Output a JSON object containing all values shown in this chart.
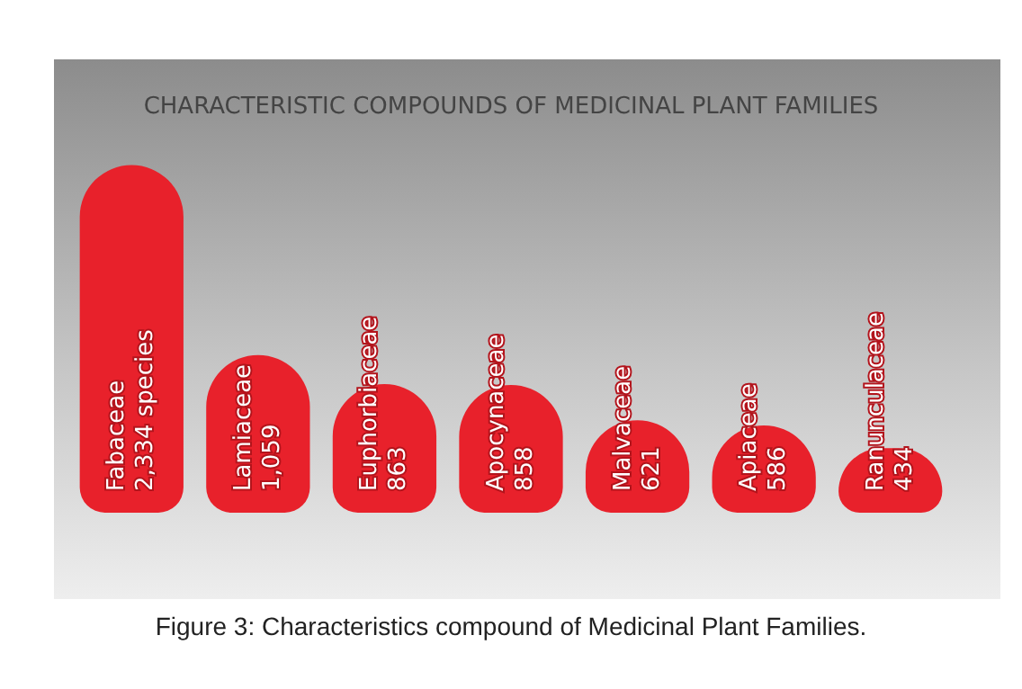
{
  "chart_data": {
    "type": "bar",
    "title": "CHARACTERISTIC COMPOUNDS OF MEDICINAL PLANT FAMILIES",
    "categories": [
      "Fabaceae",
      "Lamiaceae",
      "Euphorbiaceae",
      "Apocynaceae",
      "Malvaceae",
      "Apiaceae",
      "Ranunculaceae"
    ],
    "values": [
      2334,
      1059,
      863,
      858,
      621,
      586,
      434
    ],
    "value_labels": [
      "2,334 species",
      "1,059",
      "863",
      "858",
      "621",
      "586",
      "434"
    ],
    "color": "#e8212b",
    "tick_labels": false,
    "annotations": [
      "Figure 3: Characteristics compound of Medicinal Plant Families."
    ]
  }
}
